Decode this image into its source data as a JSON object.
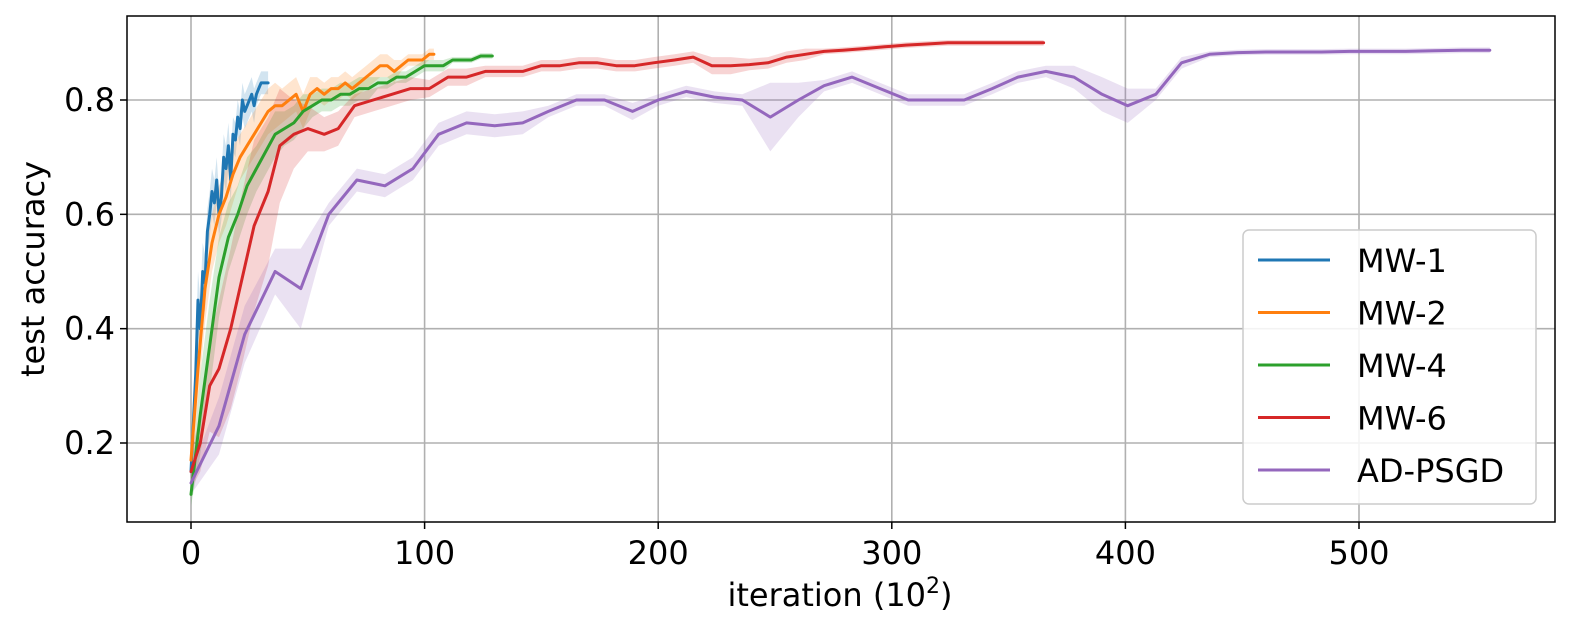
{
  "chart_data": {
    "type": "line",
    "xlabel": "iteration (10",
    "xlabel_sup": "2",
    "xlabel_close": ")",
    "ylabel": "test accuracy",
    "xlim": [
      -27,
      584
    ],
    "ylim": [
      0.065,
      0.95
    ],
    "xticks": [
      0,
      100,
      200,
      300,
      400,
      500
    ],
    "xtick_labels": [
      "0",
      "100",
      "200",
      "300",
      "400",
      "500"
    ],
    "yticks": [
      0.2,
      0.4,
      0.6,
      0.8
    ],
    "ytick_labels": [
      "0.2",
      "0.4",
      "0.6",
      "0.8"
    ],
    "grid": true,
    "legend_position": "lower-right",
    "series": [
      {
        "name": "MW-1",
        "color": "#1f77b4",
        "x": [
          0,
          2,
          3,
          4,
          5,
          6,
          7,
          8,
          9,
          10,
          11,
          12,
          13,
          14,
          15,
          16,
          17,
          18,
          19,
          20,
          21,
          22,
          23,
          24,
          25,
          26,
          27,
          28,
          29,
          30,
          31,
          32,
          33
        ],
        "y": [
          0.15,
          0.32,
          0.45,
          0.4,
          0.5,
          0.48,
          0.57,
          0.6,
          0.64,
          0.62,
          0.66,
          0.6,
          0.63,
          0.7,
          0.68,
          0.72,
          0.66,
          0.74,
          0.73,
          0.77,
          0.75,
          0.8,
          0.78,
          0.79,
          0.8,
          0.81,
          0.79,
          0.81,
          0.82,
          0.83,
          0.83,
          0.83,
          0.83
        ],
        "band": [
          0.03,
          0.04,
          0.05,
          0.05,
          0.05,
          0.05,
          0.04,
          0.04,
          0.04,
          0.04,
          0.04,
          0.04,
          0.04,
          0.04,
          0.04,
          0.04,
          0.04,
          0.03,
          0.03,
          0.03,
          0.03,
          0.03,
          0.03,
          0.03,
          0.03,
          0.03,
          0.03,
          0.02,
          0.02,
          0.02,
          0.02,
          0.02,
          0.02
        ]
      },
      {
        "name": "MW-2",
        "color": "#ff7f0e",
        "x": [
          0,
          3,
          6,
          9,
          12,
          15,
          18,
          21,
          24,
          27,
          30,
          33,
          36,
          39,
          42,
          45,
          48,
          51,
          54,
          57,
          60,
          63,
          66,
          69,
          72,
          75,
          78,
          81,
          84,
          87,
          90,
          93,
          96,
          99,
          102,
          104
        ],
        "y": [
          0.17,
          0.33,
          0.47,
          0.55,
          0.6,
          0.63,
          0.67,
          0.7,
          0.72,
          0.74,
          0.76,
          0.78,
          0.79,
          0.79,
          0.8,
          0.81,
          0.78,
          0.81,
          0.82,
          0.81,
          0.82,
          0.82,
          0.83,
          0.82,
          0.83,
          0.84,
          0.85,
          0.86,
          0.86,
          0.85,
          0.86,
          0.87,
          0.87,
          0.87,
          0.88,
          0.88
        ],
        "band": [
          0.04,
          0.06,
          0.06,
          0.05,
          0.05,
          0.05,
          0.05,
          0.04,
          0.04,
          0.04,
          0.04,
          0.04,
          0.04,
          0.03,
          0.03,
          0.03,
          0.03,
          0.03,
          0.02,
          0.02,
          0.02,
          0.02,
          0.02,
          0.02,
          0.02,
          0.02,
          0.02,
          0.02,
          0.02,
          0.02,
          0.01,
          0.01,
          0.01,
          0.01,
          0.01,
          0.01
        ]
      },
      {
        "name": "MW-4",
        "color": "#2ca02c",
        "x": [
          0,
          4,
          8,
          12,
          16,
          20,
          24,
          28,
          32,
          36,
          40,
          44,
          48,
          52,
          56,
          60,
          64,
          68,
          72,
          76,
          80,
          84,
          88,
          92,
          96,
          100,
          104,
          108,
          112,
          116,
          120,
          124,
          129
        ],
        "y": [
          0.11,
          0.25,
          0.37,
          0.49,
          0.56,
          0.6,
          0.65,
          0.68,
          0.71,
          0.74,
          0.75,
          0.76,
          0.78,
          0.79,
          0.8,
          0.8,
          0.81,
          0.81,
          0.82,
          0.82,
          0.83,
          0.83,
          0.84,
          0.84,
          0.85,
          0.86,
          0.86,
          0.86,
          0.87,
          0.87,
          0.87,
          0.877,
          0.877
        ],
        "band": [
          0.02,
          0.07,
          0.08,
          0.07,
          0.06,
          0.05,
          0.05,
          0.04,
          0.04,
          0.04,
          0.03,
          0.03,
          0.03,
          0.02,
          0.02,
          0.02,
          0.02,
          0.02,
          0.02,
          0.02,
          0.01,
          0.01,
          0.01,
          0.01,
          0.01,
          0.01,
          0.01,
          0.01,
          0.005,
          0.005,
          0.005,
          0.005,
          0.005
        ]
      },
      {
        "name": "MW-6",
        "color": "#d62728",
        "x": [
          0,
          4,
          8,
          12,
          17,
          22,
          27,
          33,
          38,
          44,
          50,
          57,
          63,
          70,
          78,
          86,
          94,
          102,
          110,
          118,
          126,
          134,
          142,
          150,
          158,
          166,
          174,
          182,
          190,
          198,
          207,
          215,
          223,
          231,
          239,
          247,
          255,
          263,
          271,
          279,
          288,
          297,
          306,
          315,
          324,
          333,
          342,
          350,
          358,
          365
        ],
        "y": [
          0.15,
          0.2,
          0.3,
          0.33,
          0.4,
          0.49,
          0.58,
          0.64,
          0.72,
          0.74,
          0.75,
          0.74,
          0.75,
          0.79,
          0.8,
          0.81,
          0.82,
          0.82,
          0.84,
          0.84,
          0.85,
          0.85,
          0.85,
          0.86,
          0.86,
          0.865,
          0.865,
          0.86,
          0.86,
          0.865,
          0.87,
          0.875,
          0.86,
          0.86,
          0.862,
          0.865,
          0.875,
          0.88,
          0.885,
          0.887,
          0.89,
          0.893,
          0.896,
          0.898,
          0.9,
          0.9,
          0.9,
          0.9,
          0.9,
          0.9
        ],
        "band": [
          0.03,
          0.05,
          0.08,
          0.12,
          0.14,
          0.15,
          0.15,
          0.13,
          0.1,
          0.06,
          0.04,
          0.03,
          0.03,
          0.02,
          0.02,
          0.02,
          0.02,
          0.015,
          0.015,
          0.015,
          0.01,
          0.01,
          0.01,
          0.01,
          0.01,
          0.01,
          0.01,
          0.01,
          0.01,
          0.01,
          0.01,
          0.01,
          0.015,
          0.015,
          0.01,
          0.01,
          0.01,
          0.01,
          0.005,
          0.005,
          0.005,
          0.005,
          0.005,
          0.005,
          0.005,
          0.005,
          0.005,
          0.005,
          0.005,
          0.005
        ]
      },
      {
        "name": "AD-PSGD",
        "color": "#9467bd",
        "x": [
          0,
          12,
          23,
          36,
          47,
          59,
          71,
          83,
          95,
          106,
          118,
          130,
          142,
          153,
          165,
          177,
          189,
          200,
          212,
          224,
          236,
          248,
          260,
          271,
          283,
          295,
          307,
          319,
          331,
          343,
          354,
          366,
          378,
          390,
          401,
          413,
          424,
          436,
          448,
          460,
          472,
          484,
          496,
          508,
          520,
          532,
          544,
          556
        ],
        "y": [
          0.13,
          0.23,
          0.39,
          0.5,
          0.47,
          0.6,
          0.66,
          0.65,
          0.68,
          0.74,
          0.76,
          0.755,
          0.76,
          0.78,
          0.8,
          0.8,
          0.78,
          0.8,
          0.815,
          0.805,
          0.8,
          0.77,
          0.8,
          0.825,
          0.84,
          0.82,
          0.8,
          0.8,
          0.8,
          0.82,
          0.84,
          0.85,
          0.84,
          0.81,
          0.79,
          0.81,
          0.865,
          0.88,
          0.883,
          0.884,
          0.884,
          0.884,
          0.885,
          0.885,
          0.885,
          0.886,
          0.887,
          0.887
        ],
        "band": [
          0.02,
          0.05,
          0.05,
          0.04,
          0.07,
          0.02,
          0.02,
          0.02,
          0.02,
          0.02,
          0.02,
          0.02,
          0.02,
          0.01,
          0.01,
          0.01,
          0.015,
          0.01,
          0.01,
          0.01,
          0.01,
          0.06,
          0.03,
          0.01,
          0.01,
          0.01,
          0.01,
          0.01,
          0.01,
          0.01,
          0.01,
          0.01,
          0.02,
          0.03,
          0.03,
          0.01,
          0.01,
          0.005,
          0.005,
          0.005,
          0.005,
          0.005,
          0.005,
          0.005,
          0.005,
          0.005,
          0.005,
          0.005
        ]
      }
    ]
  }
}
